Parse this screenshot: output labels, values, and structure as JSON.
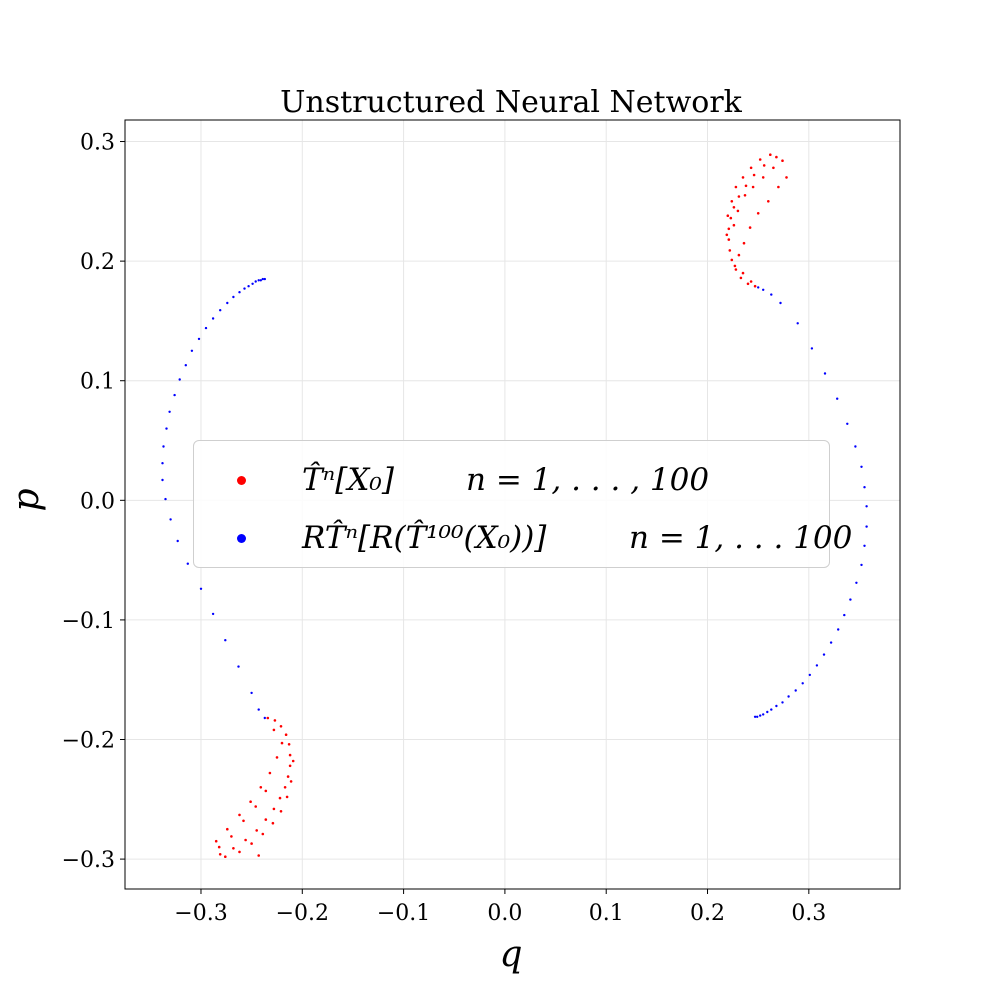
{
  "chart_data": {
    "type": "scatter",
    "title": "Unstructured Neural Network",
    "xlabel": "q",
    "ylabel": "p",
    "xlim": [
      -0.375,
      0.39
    ],
    "ylim": [
      -0.325,
      0.318
    ],
    "xticks": [
      -0.3,
      -0.2,
      -0.1,
      0.0,
      0.1,
      0.2,
      0.3
    ],
    "yticks": [
      -0.3,
      -0.2,
      -0.1,
      0.0,
      0.1,
      0.2,
      0.3
    ],
    "xtick_labels": [
      "−0.3",
      "−0.2",
      "−0.1",
      "0.0",
      "0.1",
      "0.2",
      "0.3"
    ],
    "ytick_labels": [
      "−0.3",
      "−0.2",
      "−0.1",
      "0.0",
      "0.1",
      "0.2",
      "0.3"
    ],
    "grid": true,
    "legend_position": "center",
    "series": [
      {
        "name": "T̂ⁿ[X₀]",
        "range_text": "n = 1, . . . , 100",
        "color": "#ff0000",
        "clusters": [
          {
            "points": [
              [
                0.247,
                0.179
              ],
              [
                0.24,
                0.181
              ],
              [
                0.233,
                0.186
              ],
              [
                0.228,
                0.193
              ],
              [
                0.224,
                0.201
              ],
              [
                0.222,
                0.209
              ],
              [
                0.221,
                0.218
              ],
              [
                0.221,
                0.227
              ],
              [
                0.223,
                0.236
              ],
              [
                0.226,
                0.245
              ],
              [
                0.231,
                0.254
              ],
              [
                0.238,
                0.263
              ],
              [
                0.246,
                0.272
              ],
              [
                0.256,
                0.28
              ],
              [
                0.268,
                0.287
              ],
              [
                0.219,
                0.222
              ],
              [
                0.22,
                0.238
              ],
              [
                0.224,
                0.25
              ],
              [
                0.228,
                0.262
              ],
              [
                0.235,
                0.27
              ],
              [
                0.243,
                0.278
              ],
              [
                0.252,
                0.285
              ],
              [
                0.262,
                0.289
              ],
              [
                0.274,
                0.284
              ],
              [
                0.278,
                0.27
              ],
              [
                0.27,
                0.262
              ],
              [
                0.26,
                0.25
              ],
              [
                0.25,
                0.24
              ],
              [
                0.242,
                0.228
              ],
              [
                0.236,
                0.215
              ],
              [
                0.231,
                0.205
              ],
              [
                0.227,
                0.196
              ],
              [
                0.235,
                0.19
              ],
              [
                0.243,
                0.183
              ],
              [
                0.226,
                0.23
              ],
              [
                0.23,
                0.242
              ],
              [
                0.237,
                0.255
              ],
              [
                0.245,
                0.262
              ],
              [
                0.255,
                0.27
              ],
              [
                0.265,
                0.278
              ]
            ]
          },
          {
            "points": [
              [
                -0.234,
                -0.182
              ],
              [
                -0.227,
                -0.184
              ],
              [
                -0.221,
                -0.189
              ],
              [
                -0.216,
                -0.196
              ],
              [
                -0.213,
                -0.204
              ],
              [
                -0.212,
                -0.213
              ],
              [
                -0.212,
                -0.222
              ],
              [
                -0.214,
                -0.231
              ],
              [
                -0.217,
                -0.24
              ],
              [
                -0.222,
                -0.249
              ],
              [
                -0.228,
                -0.258
              ],
              [
                -0.236,
                -0.267
              ],
              [
                -0.245,
                -0.276
              ],
              [
                -0.256,
                -0.284
              ],
              [
                -0.268,
                -0.291
              ],
              [
                -0.281,
                -0.296
              ],
              [
                -0.209,
                -0.218
              ],
              [
                -0.211,
                -0.235
              ],
              [
                -0.215,
                -0.248
              ],
              [
                -0.221,
                -0.26
              ],
              [
                -0.229,
                -0.27
              ],
              [
                -0.239,
                -0.279
              ],
              [
                -0.25,
                -0.287
              ],
              [
                -0.262,
                -0.294
              ],
              [
                -0.276,
                -0.298
              ],
              [
                -0.285,
                -0.285
              ],
              [
                -0.274,
                -0.275
              ],
              [
                -0.262,
                -0.263
              ],
              [
                -0.251,
                -0.252
              ],
              [
                -0.241,
                -0.24
              ],
              [
                -0.232,
                -0.228
              ],
              [
                -0.225,
                -0.215
              ],
              [
                -0.22,
                -0.203
              ],
              [
                -0.228,
                -0.192
              ],
              [
                -0.236,
                -0.243
              ],
              [
                -0.246,
                -0.256
              ],
              [
                -0.258,
                -0.268
              ],
              [
                -0.27,
                -0.281
              ],
              [
                -0.282,
                -0.29
              ],
              [
                -0.243,
                -0.297
              ]
            ]
          }
        ]
      },
      {
        "name": "RT̂ⁿ[R(T̂¹⁰⁰(X₀))]",
        "range_text": "n = 1, . . . 100",
        "color": "#0000ff",
        "points": [
          [
            -0.237,
            0.185
          ],
          [
            -0.239,
            0.185
          ],
          [
            -0.241,
            0.184
          ],
          [
            -0.243,
            0.184
          ],
          [
            -0.246,
            0.183
          ],
          [
            -0.249,
            0.181
          ],
          [
            -0.253,
            0.179
          ],
          [
            -0.257,
            0.177
          ],
          [
            -0.262,
            0.174
          ],
          [
            -0.268,
            0.17
          ],
          [
            -0.274,
            0.165
          ],
          [
            -0.281,
            0.159
          ],
          [
            -0.288,
            0.152
          ],
          [
            -0.295,
            0.144
          ],
          [
            -0.302,
            0.135
          ],
          [
            -0.309,
            0.125
          ],
          [
            -0.315,
            0.113
          ],
          [
            -0.321,
            0.101
          ],
          [
            -0.326,
            0.088
          ],
          [
            -0.331,
            0.074
          ],
          [
            -0.334,
            0.06
          ],
          [
            -0.337,
            0.045
          ],
          [
            -0.338,
            0.031
          ],
          [
            -0.338,
            0.017
          ],
          [
            -0.335,
            0.001
          ],
          [
            -0.33,
            -0.016
          ],
          [
            -0.323,
            -0.034
          ],
          [
            -0.313,
            -0.053
          ],
          [
            -0.3,
            -0.074
          ],
          [
            -0.288,
            -0.095
          ],
          [
            -0.276,
            -0.117
          ],
          [
            -0.263,
            -0.139
          ],
          [
            -0.25,
            -0.161
          ],
          [
            -0.243,
            -0.175
          ],
          [
            -0.237,
            -0.182
          ],
          [
            0.247,
            -0.181
          ],
          [
            0.249,
            -0.181
          ],
          [
            0.252,
            -0.18
          ],
          [
            0.255,
            -0.179
          ],
          [
            0.259,
            -0.177
          ],
          [
            0.263,
            -0.175
          ],
          [
            0.268,
            -0.172
          ],
          [
            0.274,
            -0.169
          ],
          [
            0.28,
            -0.164
          ],
          [
            0.287,
            -0.159
          ],
          [
            0.294,
            -0.153
          ],
          [
            0.301,
            -0.146
          ],
          [
            0.308,
            -0.138
          ],
          [
            0.315,
            -0.129
          ],
          [
            0.322,
            -0.119
          ],
          [
            0.329,
            -0.108
          ],
          [
            0.335,
            -0.096
          ],
          [
            0.341,
            -0.083
          ],
          [
            0.347,
            -0.069
          ],
          [
            0.352,
            -0.054
          ],
          [
            0.355,
            -0.038
          ],
          [
            0.357,
            -0.022
          ],
          [
            0.357,
            -0.005
          ],
          [
            0.355,
            0.011
          ],
          [
            0.352,
            0.028
          ],
          [
            0.346,
            0.045
          ],
          [
            0.338,
            0.064
          ],
          [
            0.328,
            0.085
          ],
          [
            0.316,
            0.106
          ],
          [
            0.303,
            0.127
          ],
          [
            0.289,
            0.148
          ],
          [
            0.272,
            0.165
          ],
          [
            0.263,
            0.172
          ],
          [
            0.255,
            0.176
          ],
          [
            0.25,
            0.178
          ]
        ]
      }
    ]
  }
}
